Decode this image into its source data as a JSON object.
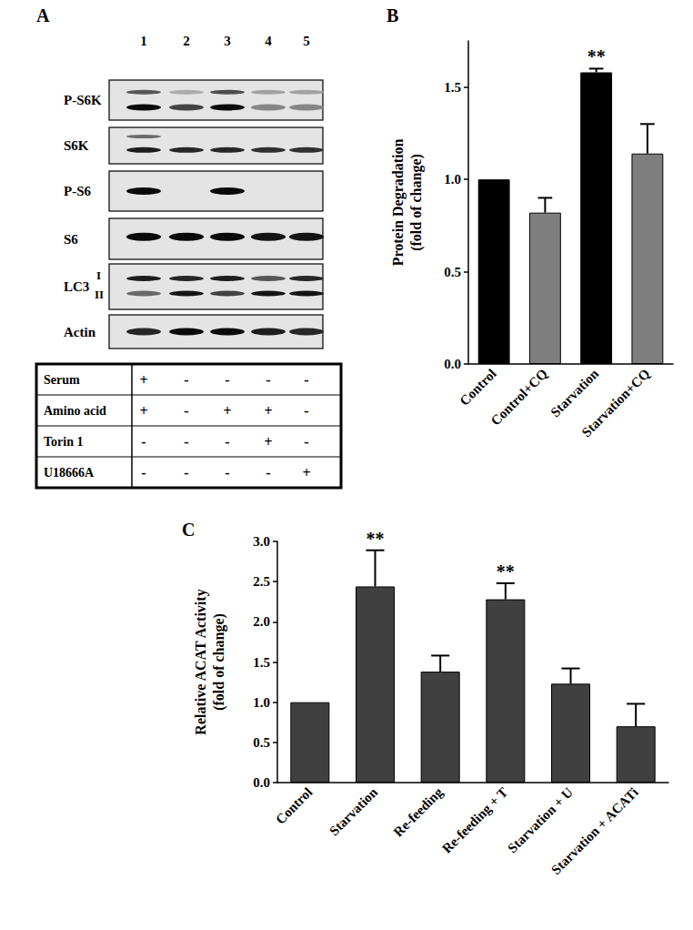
{
  "panel_a": {
    "label": "A",
    "lanes": [
      1,
      2,
      3,
      4,
      5
    ],
    "blots": [
      "P-S6K",
      "S6K",
      "P-S6",
      "S6",
      "LC3",
      "Actin"
    ],
    "lc3_forms": [
      "I",
      "II"
    ],
    "treatments": [
      {
        "name": "Serum",
        "values": [
          "+",
          "-",
          "-",
          "-",
          "-"
        ]
      },
      {
        "name": "Amino acid",
        "values": [
          "+",
          "-",
          "+",
          "+",
          "-"
        ]
      },
      {
        "name": "Torin 1",
        "values": [
          "-",
          "-",
          "-",
          "+",
          "-"
        ]
      },
      {
        "name": "U18666A",
        "values": [
          "-",
          "-",
          "-",
          "-",
          "+"
        ]
      }
    ]
  },
  "chart_data": [
    {
      "type": "bar",
      "title": "B",
      "y_label": "Protein Degradation\n(fold of change)",
      "categories": [
        "Control",
        "Control+CQ",
        "Starvation",
        "Starvation+CQ"
      ],
      "values": [
        1.0,
        0.82,
        1.58,
        1.14
      ],
      "errors": [
        0,
        0.08,
        0.02,
        0.16
      ],
      "colors": [
        "#000000",
        "#7f7f7f",
        "#000000",
        "#7f7f7f"
      ],
      "ylim": [
        0,
        1.75
      ],
      "yticks": [
        {
          "value": 0,
          "label": "0.0"
        },
        0.5,
        {
          "value": 1,
          "label": "1.0"
        },
        1.5
      ],
      "annotations": [
        {
          "category": "Starvation",
          "text": "**"
        }
      ]
    },
    {
      "type": "bar",
      "title": "C",
      "y_label": "Relative ACAT Activity\n(fold of change)",
      "categories": [
        "Control",
        "Starvation",
        "Re-feeding",
        "Re-feeding + T",
        "Starvation + U",
        "Starvation + ACATi"
      ],
      "values": [
        1.0,
        2.44,
        1.38,
        2.28,
        1.23,
        0.7
      ],
      "errors": [
        0,
        0.45,
        0.2,
        0.2,
        0.19,
        0.28
      ],
      "color": "#404040",
      "ylim": [
        0,
        3.0
      ],
      "yticks": [
        {
          "value": 0,
          "label": "0.0"
        },
        0.5,
        {
          "value": 1,
          "label": "1.0"
        },
        1.5,
        {
          "value": 2,
          "label": "2.0"
        },
        2.5,
        {
          "value": 3,
          "label": "3.0"
        }
      ],
      "annotations": [
        {
          "category": "Starvation",
          "text": "**"
        },
        {
          "category": "Re-feeding + T",
          "text": "**"
        }
      ]
    }
  ]
}
